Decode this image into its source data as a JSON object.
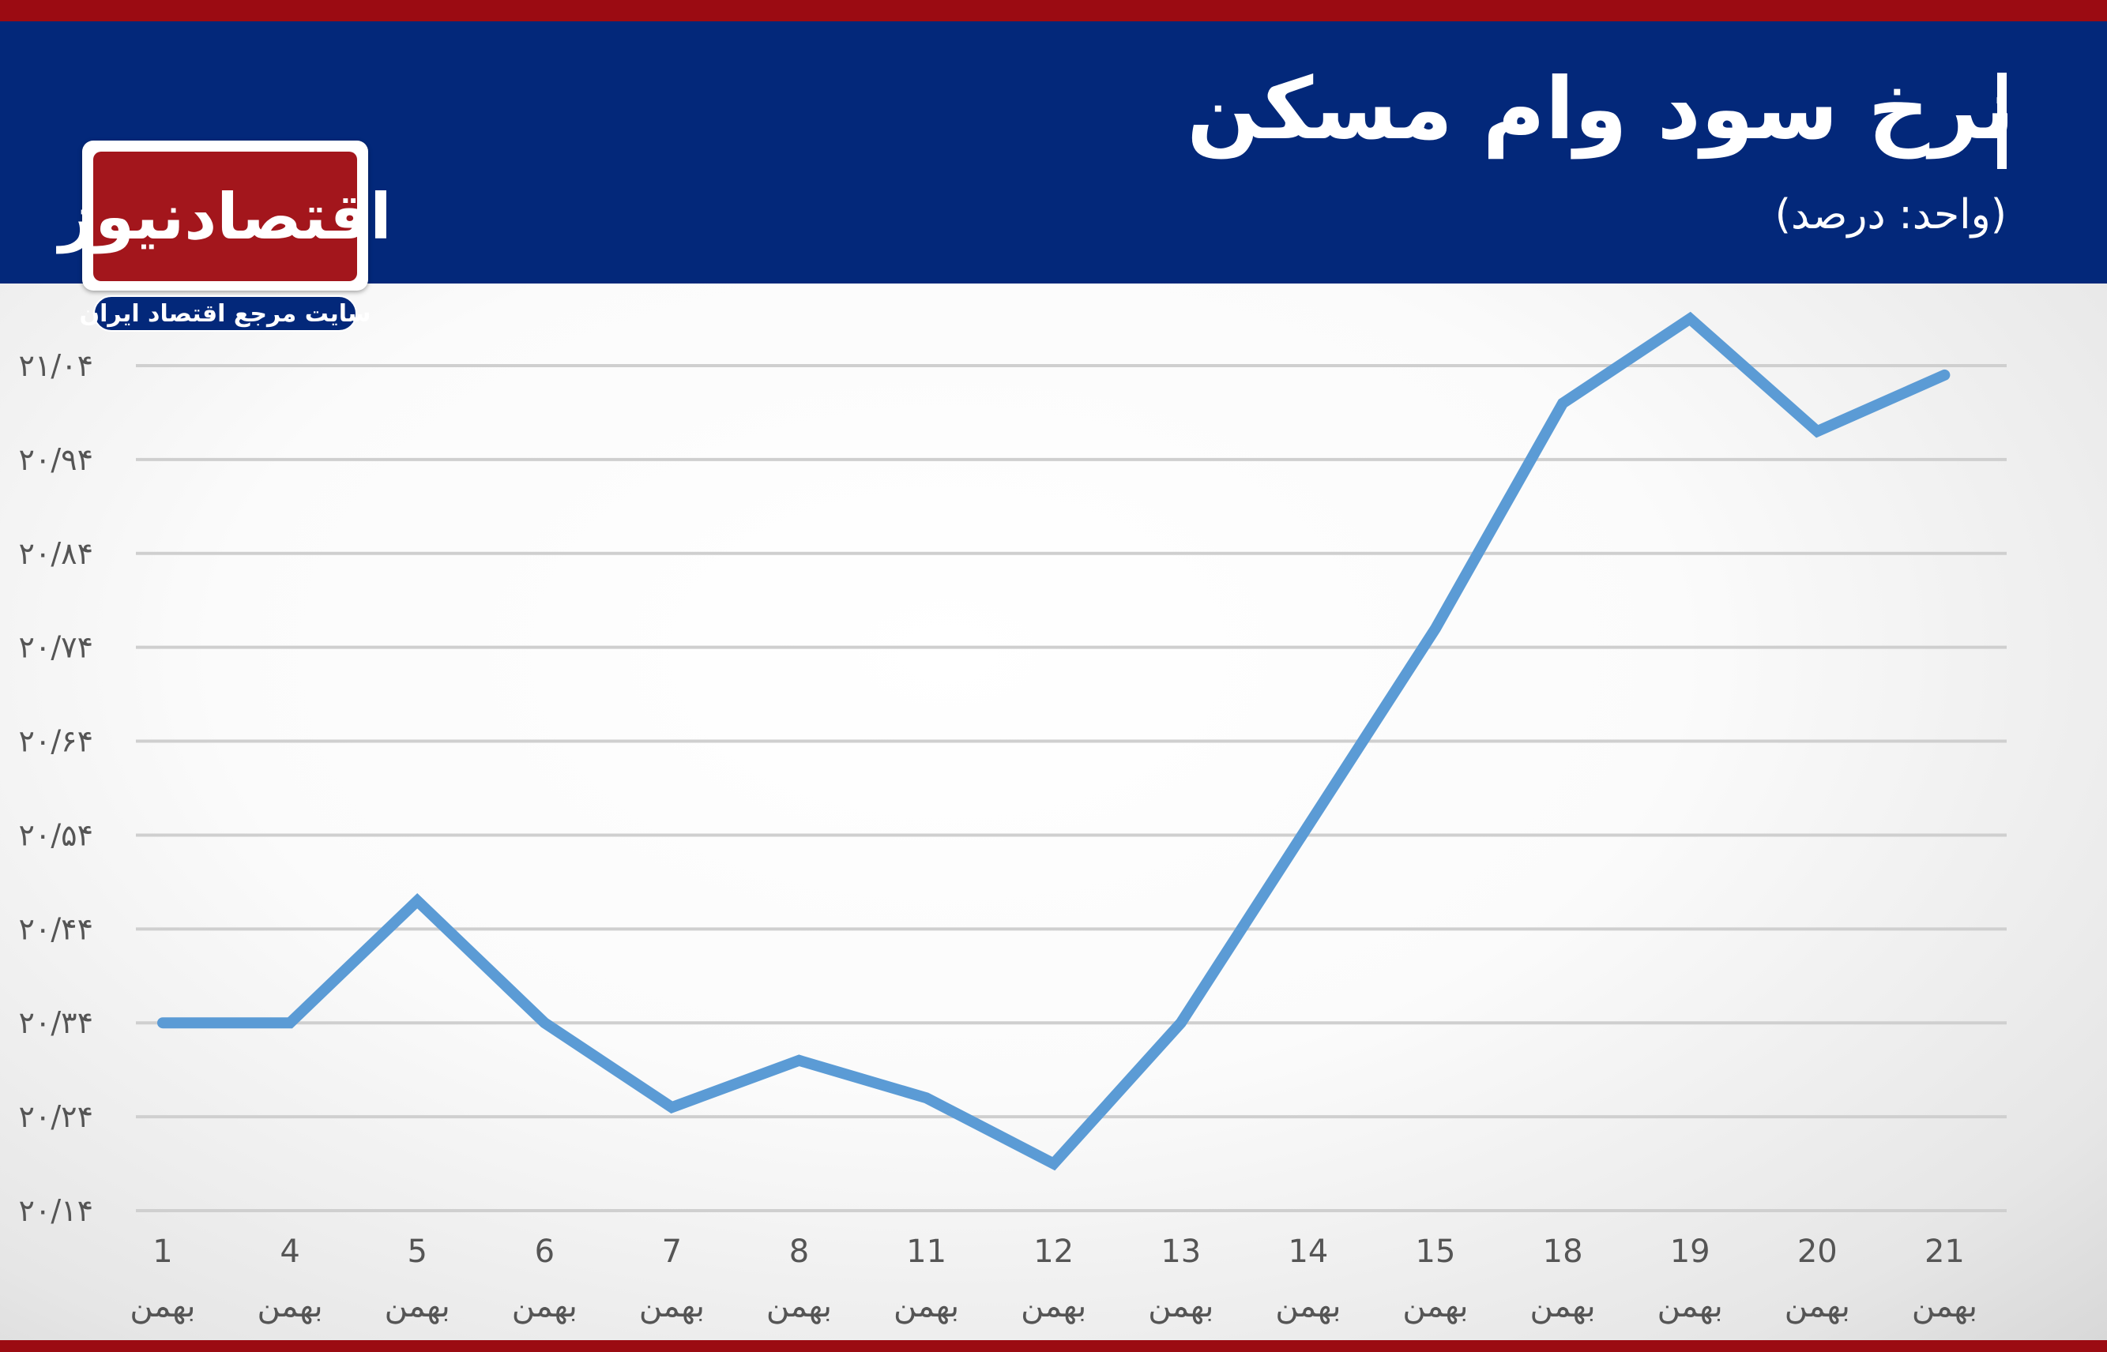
{
  "header": {
    "title": "نرخ سود وام مسکن",
    "subtitle": "(واحد: درصد)"
  },
  "logo": {
    "name": "اقتصادنیوز",
    "tagline": "سایت مرجع اقتصاد ایران"
  },
  "colors": {
    "header": "#03287a",
    "accent_bar": "#9b0b12",
    "line": "#5b9bd5",
    "grid": "#cfcfcf"
  },
  "chart_data": {
    "type": "line",
    "categories": [
      "1",
      "4",
      "5",
      "6",
      "7",
      "8",
      "11",
      "12",
      "13",
      "14",
      "15",
      "18",
      "19",
      "20",
      "21"
    ],
    "category_month": "بهمن",
    "series": [
      {
        "values": [
          20.34,
          20.34,
          20.47,
          20.34,
          20.25,
          20.3,
          20.26,
          20.19,
          20.34,
          20.55,
          20.76,
          21.0,
          21.09,
          20.97,
          21.03
        ]
      }
    ],
    "y_ticks": [
      "۲۰/۱۴",
      "۲۰/۲۴",
      "۲۰/۳۴",
      "۲۰/۴۴",
      "۲۰/۵۴",
      "۲۰/۶۴",
      "۲۰/۷۴",
      "۲۰/۸۴",
      "۲۰/۹۴",
      "۲۱/۰۴"
    ],
    "ylim": [
      20.14,
      21.04
    ],
    "grid": true,
    "legend": "none"
  }
}
